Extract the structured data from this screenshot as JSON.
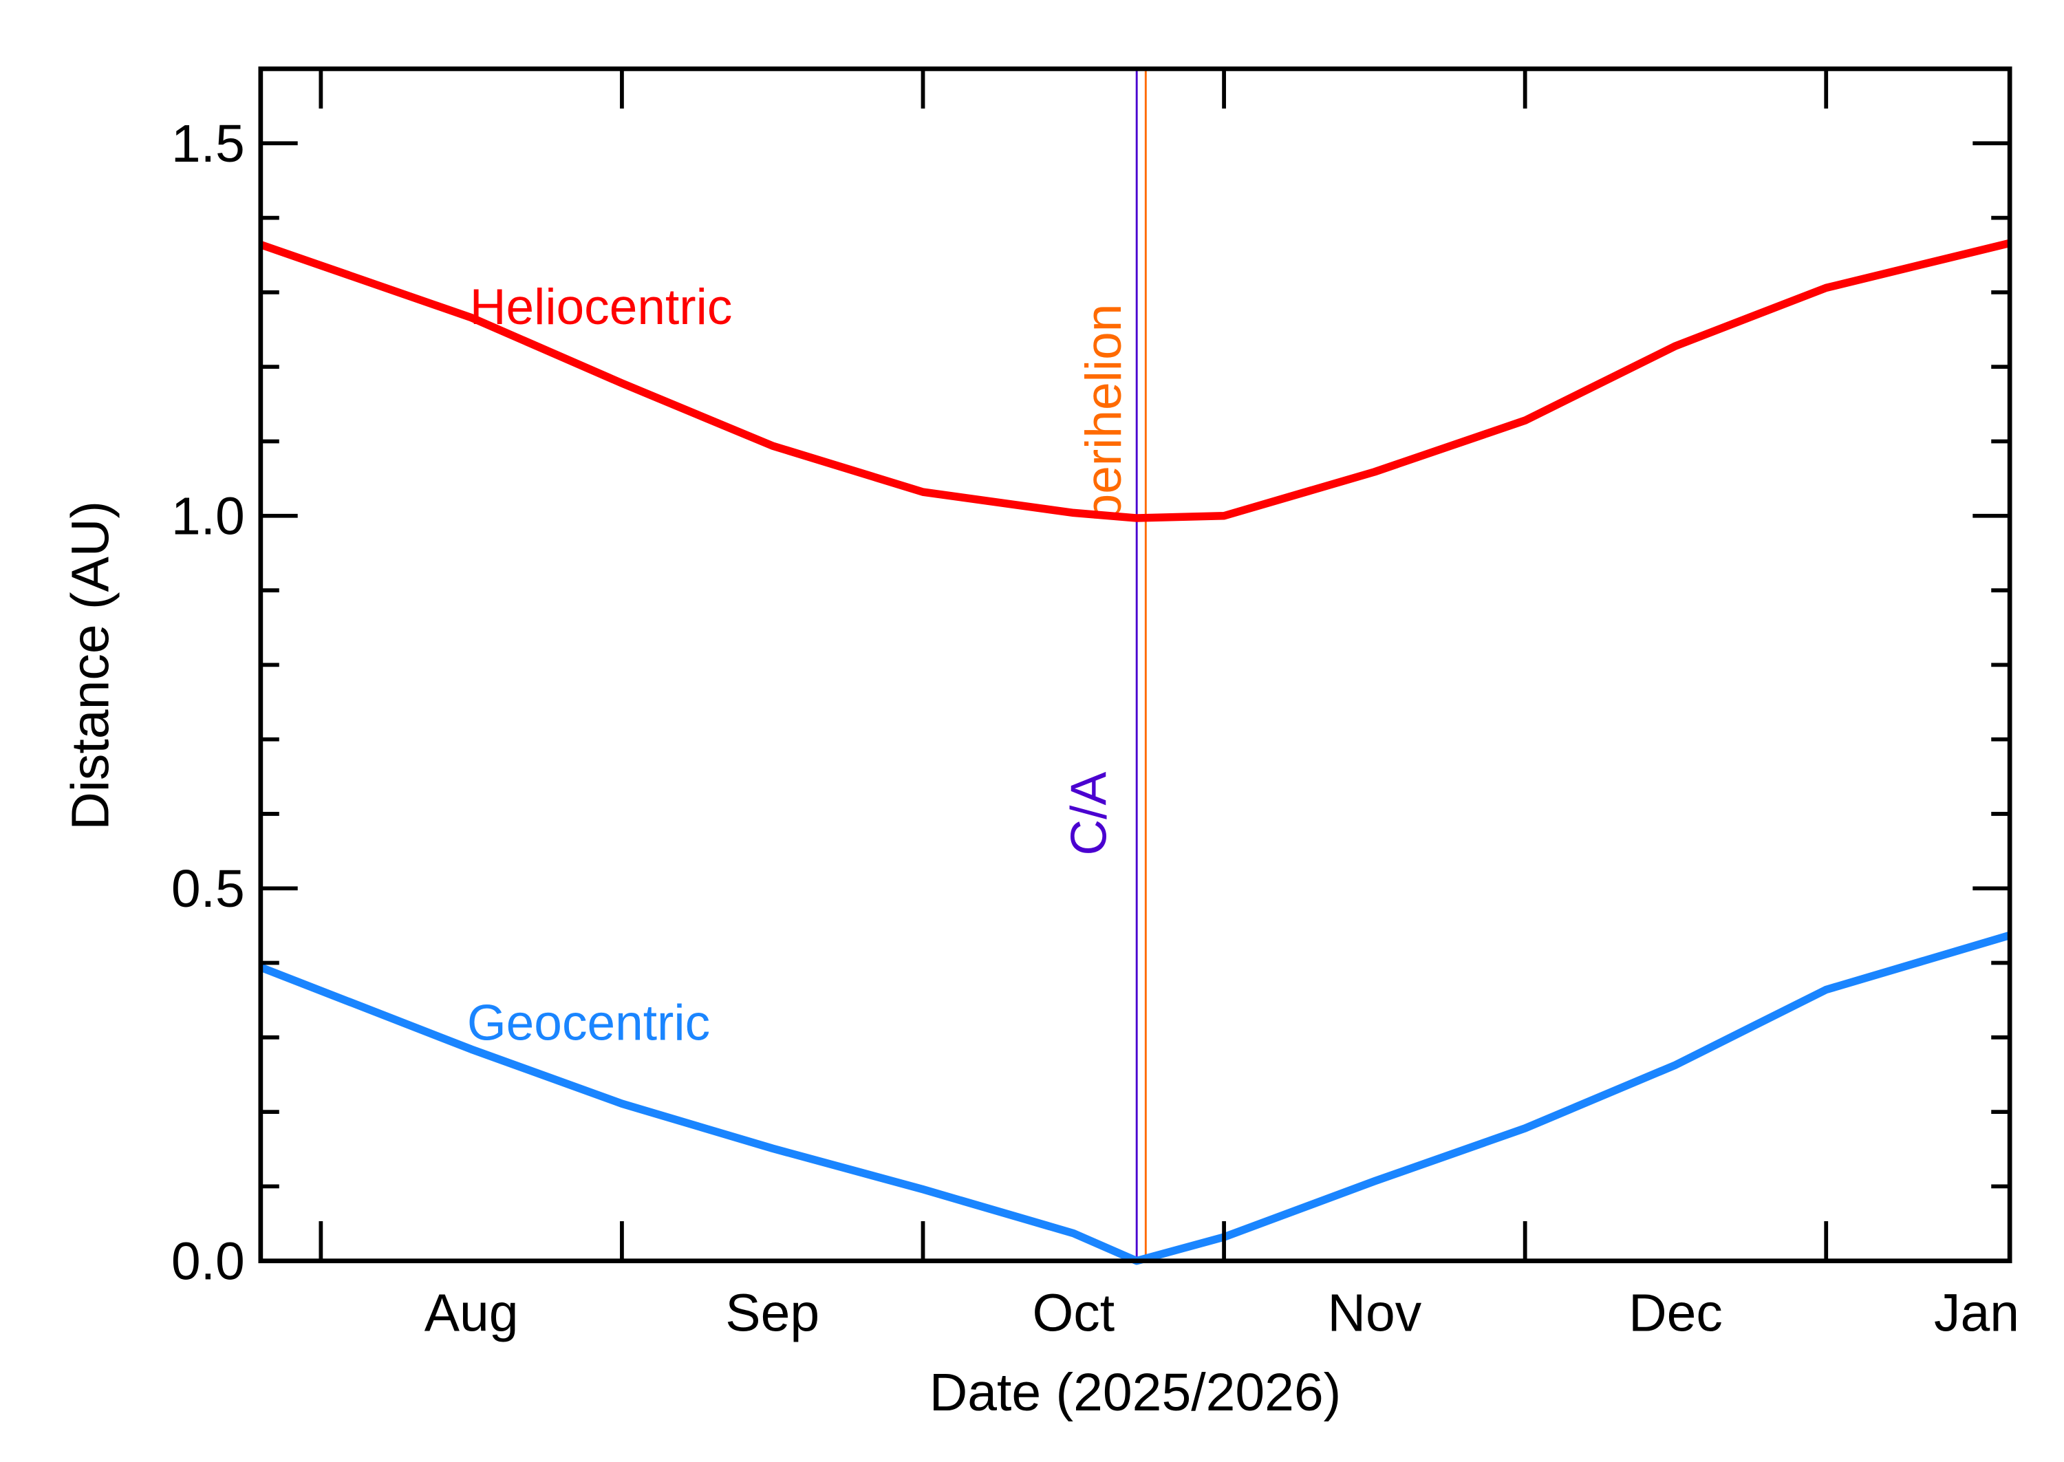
{
  "chart_data": {
    "type": "line",
    "x_label": "Date (2025/2026)",
    "y_label": "Distance (AU)",
    "x": [
      7.8,
      8.5,
      9.0,
      9.5,
      10.0,
      10.5,
      10.71,
      11.0,
      11.5,
      12.0,
      12.5,
      13.0,
      13.61
    ],
    "series": [
      {
        "name": "Heliocentric",
        "color": "#ff0000",
        "values": [
          1.364,
          1.266,
          1.178,
          1.094,
          1.032,
          1.004,
          0.997,
          1.0,
          1.059,
          1.128,
          1.228,
          1.306,
          1.366
        ]
      },
      {
        "name": "Geocentric",
        "color": "#1a85ff",
        "values": [
          0.394,
          0.284,
          0.211,
          0.151,
          0.096,
          0.037,
          0.0,
          0.032,
          0.107,
          0.178,
          0.263,
          0.364,
          0.437
        ]
      }
    ],
    "markers": [
      {
        "name": "C/A",
        "x": 10.71,
        "color": "#4a00d0"
      },
      {
        "name": "perihelion",
        "x": 10.74,
        "color": "#ff6a00"
      }
    ],
    "xlim": [
      7.8,
      13.61
    ],
    "xticks": [
      {
        "value": 8.5,
        "label": "Aug"
      },
      {
        "value": 9.5,
        "label": "Sep"
      },
      {
        "value": 10.5,
        "label": "Oct"
      },
      {
        "value": 11.5,
        "label": "Nov"
      },
      {
        "value": 12.5,
        "label": "Dec"
      },
      {
        "value": 13.5,
        "label": "Jan"
      }
    ],
    "x_major_ticks": [
      8,
      9,
      10,
      11,
      12,
      13
    ],
    "ylim": [
      0,
      1.6
    ],
    "yticks": [
      {
        "value": 0,
        "label": "0.0"
      },
      {
        "value": 0.5,
        "label": "0.5"
      },
      {
        "value": 1,
        "label": "1.0"
      },
      {
        "value": 1.5,
        "label": "1.5"
      }
    ],
    "y_minor_ticks": [
      0.1,
      0.2,
      0.3,
      0.4,
      0.6,
      0.7,
      0.8,
      0.9,
      1.1,
      1.2,
      1.3,
      1.4
    ],
    "grid": false
  }
}
